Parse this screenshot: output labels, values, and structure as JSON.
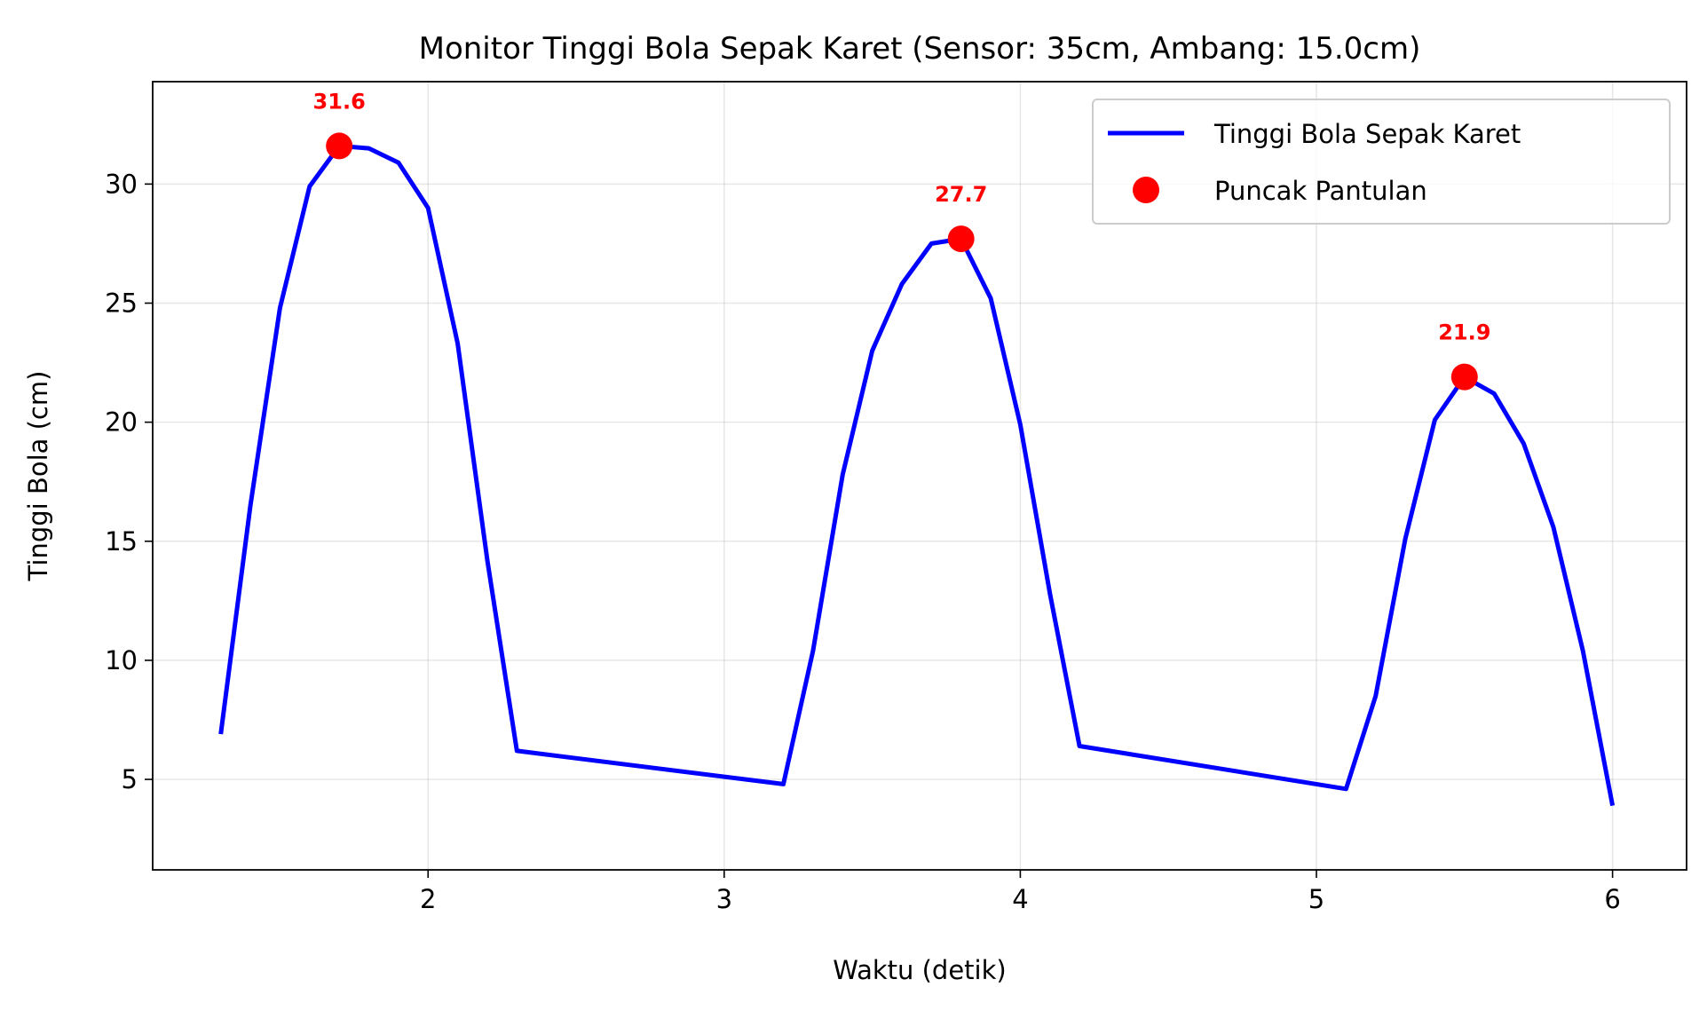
{
  "chart_data": {
    "type": "line",
    "title": "Monitor Tinggi Bola Sepak Karet (Sensor: 35cm, Ambang: 15.0cm)",
    "xlabel": "Waktu (detik)",
    "ylabel": "Tinggi Bola (cm)",
    "xlim": [
      1.07,
      6.25
    ],
    "ylim": [
      1.2,
      34.3
    ],
    "xticks": [
      2,
      3,
      4,
      5,
      6
    ],
    "yticks": [
      5,
      10,
      15,
      20,
      25,
      30
    ],
    "grid": true,
    "legend_position": "top-right",
    "series": [
      {
        "name": "Tinggi Bola Sepak Karet",
        "color": "#0000ff",
        "style": "line",
        "x": [
          1.3,
          1.4,
          1.5,
          1.6,
          1.7,
          1.8,
          1.9,
          2.0,
          2.1,
          2.2,
          2.3,
          3.2,
          3.3,
          3.4,
          3.5,
          3.6,
          3.7,
          3.8,
          3.9,
          4.0,
          4.1,
          4.2,
          5.1,
          5.2,
          5.3,
          5.4,
          5.5,
          5.6,
          5.7,
          5.8,
          5.9,
          6.0
        ],
        "y": [
          6.9,
          16.5,
          24.8,
          29.9,
          31.6,
          31.5,
          30.9,
          29.0,
          23.3,
          14.2,
          6.2,
          4.8,
          10.4,
          17.8,
          23.0,
          25.8,
          27.5,
          27.7,
          25.2,
          19.9,
          12.8,
          6.4,
          4.6,
          8.5,
          15.1,
          20.1,
          21.9,
          21.2,
          19.1,
          15.6,
          10.4,
          3.9
        ]
      },
      {
        "name": "Puncak Pantulan",
        "color": "#ff0000",
        "style": "marker",
        "x": [
          1.7,
          3.8,
          5.5
        ],
        "y": [
          31.6,
          27.7,
          21.9
        ],
        "labels": [
          "31.6",
          "27.7",
          "21.9"
        ]
      }
    ]
  }
}
